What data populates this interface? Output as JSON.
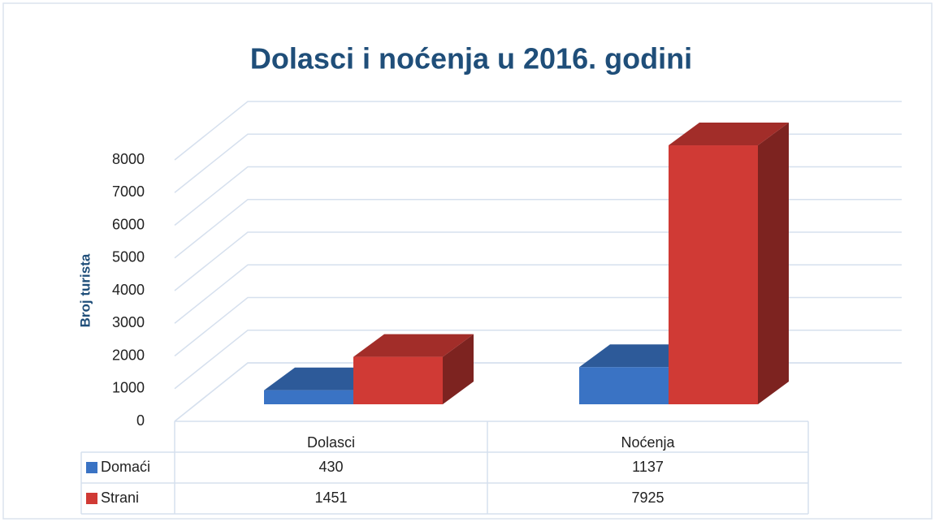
{
  "chart_data": {
    "type": "bar3d",
    "title": "Dolasci i noćenja u 2016. godini",
    "y_label": "Broj turista",
    "categories": [
      "Dolasci",
      "Noćenja"
    ],
    "series": [
      {
        "name": "Domaći",
        "color": "#3a73c4",
        "values": [
          430,
          1137
        ]
      },
      {
        "name": "Strani",
        "color": "#d03a35",
        "values": [
          1451,
          7925
        ]
      }
    ],
    "ylim": [
      0,
      8000
    ],
    "yticks": [
      0,
      1000,
      2000,
      3000,
      4000,
      5000,
      6000,
      7000,
      8000
    ],
    "grid": true,
    "data_table": true
  }
}
